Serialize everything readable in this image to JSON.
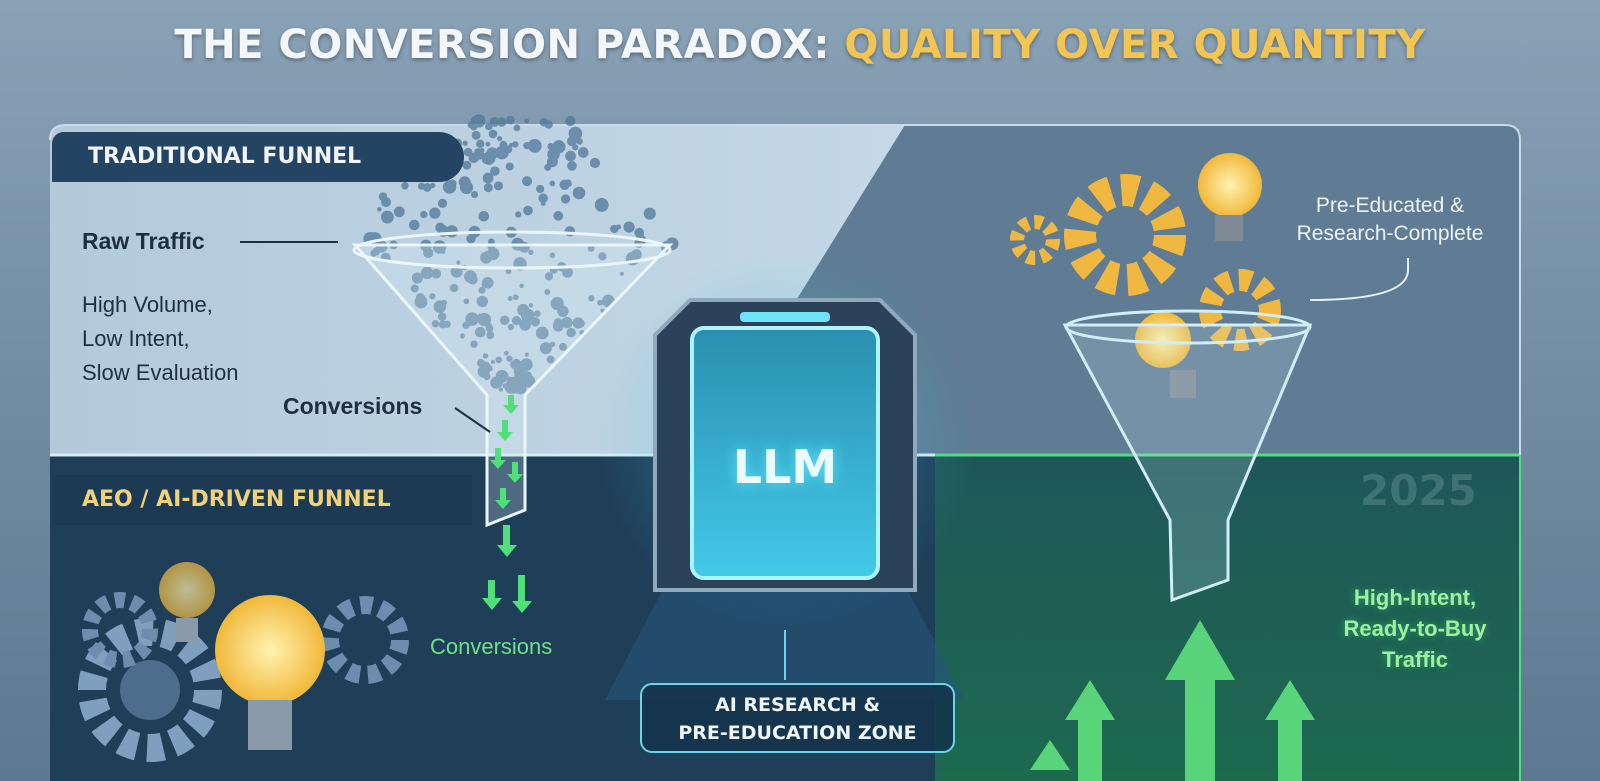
{
  "title": {
    "part1": "THE CONVERSION PARADOX: ",
    "part2": "QUALITY OVER QUANTITY"
  },
  "traditional": {
    "tag": "TRADITIONAL FUNNEL",
    "raw_traffic": "Raw Traffic",
    "description": [
      "High Volume,",
      "Low Intent,",
      "Slow Evaluation"
    ],
    "conversions": "Conversions"
  },
  "aeo": {
    "tag": "AEO / AI-DRIVEN FUNNEL",
    "conversions": "Conversions"
  },
  "center": {
    "portal_label": "LLM",
    "zone_label": [
      "AI RESEARCH &",
      "PRE-EDUCATION ZONE"
    ]
  },
  "right": {
    "pre_educated": [
      "Pre-Educated &",
      "Research-Complete"
    ],
    "year": "2025",
    "high_intent": [
      "High-Intent,",
      "Ready-to-Buy",
      "Traffic"
    ]
  },
  "colors": {
    "accent_gold": "#f3c553",
    "accent_green": "#4fe07a",
    "accent_cyan": "#5fe3ff",
    "navy": "#1d3a55"
  }
}
